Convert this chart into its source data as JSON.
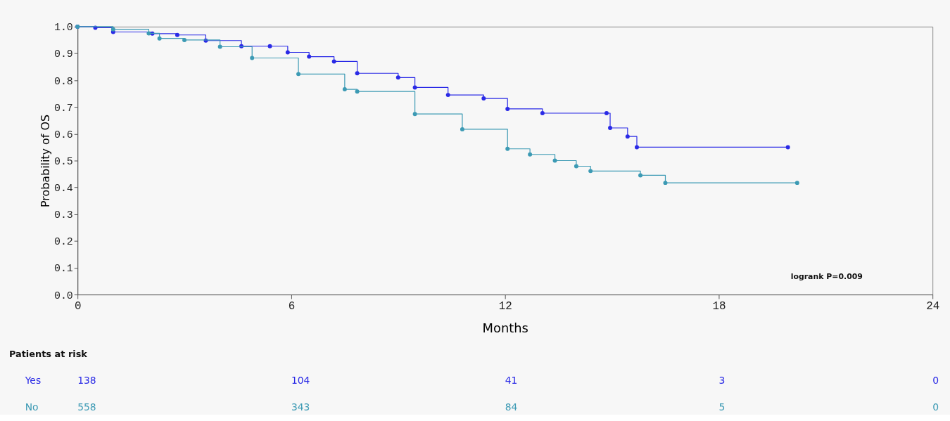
{
  "chart_data": {
    "type": "step",
    "xlabel": "Months",
    "ylabel": "Probability of  OS",
    "xlim": [
      0,
      24
    ],
    "xticks": [
      0,
      6,
      12,
      18,
      24
    ],
    "ylim": [
      0,
      1
    ],
    "yticks": [
      {
        "value": 0,
        "label": "0.0"
      },
      0.1,
      0.2,
      0.3,
      0.4,
      0.5,
      0.6,
      0.7,
      0.8,
      0.9,
      {
        "value": 1,
        "label": "1.0"
      }
    ],
    "marker": "circle",
    "line_style": "solid",
    "series": [
      {
        "name": "Yes",
        "color": "#2a2ae6",
        "x": [
          0,
          0.5,
          1.0,
          2.1,
          2.8,
          3.6,
          4.6,
          5.4,
          5.9,
          6.5,
          7.2,
          7.85,
          9.0,
          9.47,
          10.4,
          11.4,
          12.07,
          13.05,
          14.85,
          14.95,
          15.44,
          15.7,
          19.94
        ],
        "values": [
          1.0,
          0.996,
          0.98,
          0.974,
          0.969,
          0.948,
          0.927,
          0.927,
          0.904,
          0.888,
          0.87,
          0.826,
          0.81,
          0.773,
          0.745,
          0.732,
          0.693,
          0.677,
          0.677,
          0.622,
          0.59,
          0.55,
          0.55
        ]
      },
      {
        "name": "No",
        "color": "#3c9ab4",
        "x": [
          0,
          1.0,
          2.0,
          2.3,
          3.0,
          4.0,
          4.9,
          6.2,
          7.5,
          7.85,
          9.47,
          10.8,
          12.07,
          12.7,
          13.4,
          14.0,
          14.4,
          15.8,
          16.5,
          20.2
        ],
        "values": [
          1.0,
          0.99,
          0.975,
          0.956,
          0.95,
          0.925,
          0.883,
          0.823,
          0.766,
          0.758,
          0.674,
          0.617,
          0.544,
          0.523,
          0.5,
          0.479,
          0.461,
          0.445,
          0.417,
          0.417
        ]
      }
    ],
    "annotations": [
      "logrank P=0.009",
      "Patients at risk",
      "138",
      "104",
      "41",
      "3",
      "0",
      "558",
      "343",
      "84",
      "5",
      "0"
    ]
  }
}
